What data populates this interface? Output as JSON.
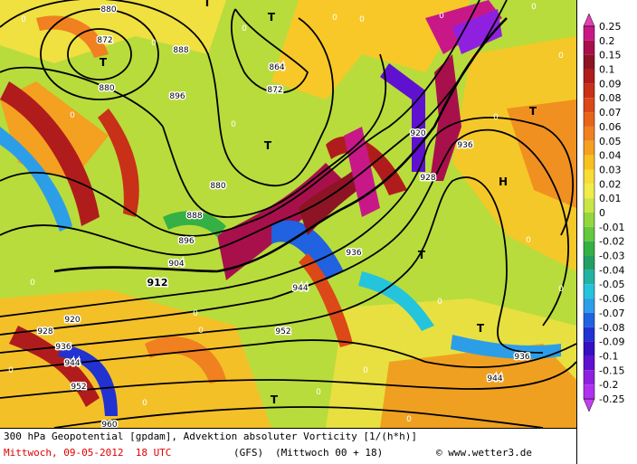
{
  "title": "300 hPa Geopotential [gpdam], Advektion absoluter Vorticity [1/(h*h)]",
  "valid_time": "Mittwoch, 09-05-2012  18 UTC",
  "model": "(GFS)",
  "run": "(Mittwoch 00 + 18)",
  "copyright": "© www.wetter3.de",
  "colorbar": {
    "labels": [
      0.25,
      0.2,
      0.15,
      0.1,
      0.09,
      0.08,
      0.07,
      0.06,
      0.05,
      0.04,
      0.03,
      0.02,
      0.01,
      0,
      -0.01,
      -0.02,
      -0.03,
      -0.04,
      -0.05,
      -0.06,
      -0.07,
      -0.08,
      -0.09,
      -0.1,
      -0.15,
      -0.2,
      -0.25
    ],
    "colors": [
      "#c81888",
      "#a8104c",
      "#8c1424",
      "#b01c1c",
      "#c83018",
      "#dc4818",
      "#e86418",
      "#f08020",
      "#f4a020",
      "#f8c020",
      "#f8dc38",
      "#f0ec48",
      "#c8e648",
      "#94d640",
      "#64c840",
      "#34b044",
      "#22a064",
      "#22b2a4",
      "#24c4dc",
      "#2c9ee8",
      "#2062e0",
      "#2232d0",
      "#3410c0",
      "#6010d0",
      "#9020e0",
      "#b030f0"
    ],
    "over_color": "#e040b0",
    "under_color": "#c040f0"
  },
  "contour_labels": [
    "880",
    "872",
    "880",
    "888",
    "896",
    "864",
    "872",
    "880",
    "888",
    "896",
    "904",
    "912",
    "920",
    "928",
    "936",
    "944",
    "952",
    "960",
    "944",
    "952",
    "936",
    "928",
    "920",
    "936",
    "936",
    "944"
  ],
  "pressure_centers": [
    "T",
    "T",
    "T",
    "T",
    "T",
    "H",
    "T",
    "T",
    "T"
  ],
  "field_labels": [
    "0",
    "0",
    "0",
    "0",
    "0",
    "0",
    "0",
    "0",
    "0",
    "0",
    "0",
    "0",
    "0",
    "0",
    "0",
    "0",
    "0",
    "0",
    "0",
    "0",
    "0",
    "0"
  ]
}
